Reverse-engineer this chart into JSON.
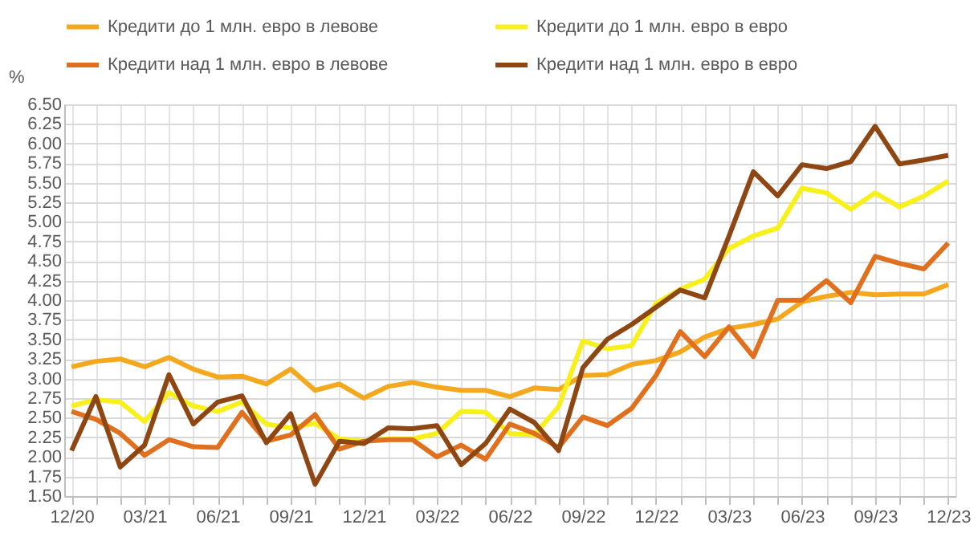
{
  "chart_data": {
    "type": "line",
    "ylabel": "%",
    "categories": [
      "12/20",
      null,
      null,
      "03/21",
      null,
      null,
      "06/21",
      null,
      null,
      "09/21",
      null,
      null,
      "12/21",
      null,
      null,
      "03/22",
      null,
      null,
      "06/22",
      null,
      null,
      "09/22",
      null,
      null,
      "12/22",
      null,
      null,
      "03/23",
      null,
      null,
      "06/23",
      null,
      null,
      "09/23",
      null,
      null,
      "12/23"
    ],
    "series": [
      {
        "name": "Кредити до 1 млн. евро в левове",
        "color": "#f4a81d",
        "values": [
          3.15,
          3.22,
          3.25,
          3.15,
          3.27,
          3.12,
          3.02,
          3.03,
          2.93,
          3.12,
          2.85,
          2.93,
          2.75,
          2.9,
          2.95,
          2.89,
          2.85,
          2.85,
          2.77,
          2.88,
          2.86,
          3.04,
          3.05,
          3.18,
          3.23,
          3.34,
          3.53,
          3.64,
          3.69,
          3.76,
          3.98,
          4.05,
          4.1,
          4.07,
          4.08,
          4.08,
          4.2
        ]
      },
      {
        "name": "Кредити до 1 млн. евро в евро",
        "color": "#f7f01a",
        "values": [
          2.65,
          2.73,
          2.7,
          2.45,
          2.82,
          2.65,
          2.58,
          2.7,
          2.42,
          2.37,
          2.43,
          2.23,
          2.2,
          2.23,
          2.23,
          2.3,
          2.58,
          2.57,
          2.3,
          2.28,
          2.64,
          3.48,
          3.38,
          3.42,
          3.96,
          4.14,
          4.27,
          4.66,
          4.82,
          4.92,
          5.43,
          5.37,
          5.16,
          5.37,
          5.19,
          5.33,
          5.52
        ]
      },
      {
        "name": "Кредити над 1 млн. евро в левове",
        "color": "#e0701e",
        "values": [
          2.58,
          2.48,
          2.3,
          2.02,
          2.22,
          2.13,
          2.12,
          2.57,
          2.2,
          2.28,
          2.54,
          2.1,
          2.2,
          2.22,
          2.22,
          2.0,
          2.15,
          1.97,
          2.42,
          2.3,
          2.12,
          2.51,
          2.4,
          2.62,
          3.04,
          3.6,
          3.28,
          3.66,
          3.28,
          4.0,
          4.0,
          4.25,
          3.97,
          4.56,
          4.47,
          4.4,
          4.73
        ]
      },
      {
        "name": "Кредити над 1 млн. евро в евро",
        "color": "#8e4612",
        "values": [
          2.08,
          2.77,
          1.87,
          2.15,
          3.05,
          2.42,
          2.7,
          2.78,
          2.18,
          2.55,
          1.65,
          2.2,
          2.17,
          2.37,
          2.36,
          2.4,
          1.9,
          2.17,
          2.61,
          2.44,
          2.08,
          3.14,
          3.5,
          3.69,
          3.91,
          4.13,
          4.03,
          4.82,
          5.64,
          5.33,
          5.73,
          5.68,
          5.77,
          6.22,
          5.74,
          5.79,
          5.85
        ]
      }
    ],
    "ylim": [
      1.5,
      6.5
    ],
    "yticks": [
      {
        "value": 1.5,
        "label": "1.50"
      },
      {
        "value": 1.75,
        "label": "1.75"
      },
      {
        "value": 2.0,
        "label": "2.00"
      },
      {
        "value": 2.25,
        "label": "2.25"
      },
      {
        "value": 2.5,
        "label": "2.50"
      },
      {
        "value": 2.75,
        "label": "2.75"
      },
      {
        "value": 3.0,
        "label": "3.00"
      },
      {
        "value": 3.25,
        "label": "3.25"
      },
      {
        "value": 3.5,
        "label": "3.50"
      },
      {
        "value": 3.75,
        "label": "3.75"
      },
      {
        "value": 4.0,
        "label": "4.00"
      },
      {
        "value": 4.25,
        "label": "4.25"
      },
      {
        "value": 4.5,
        "label": "4.50"
      },
      {
        "value": 4.75,
        "label": "4.75"
      },
      {
        "value": 5.0,
        "label": "5.00"
      },
      {
        "value": 5.25,
        "label": "5.25"
      },
      {
        "value": 5.5,
        "label": "5.50"
      },
      {
        "value": 5.75,
        "label": "5.75"
      },
      {
        "value": 6.0,
        "label": "6.00"
      },
      {
        "value": 6.25,
        "label": "6.25"
      },
      {
        "value": 6.5,
        "label": "6.50"
      }
    ],
    "grid": true,
    "legend": "top",
    "marker": "none",
    "line_style": "solid"
  }
}
